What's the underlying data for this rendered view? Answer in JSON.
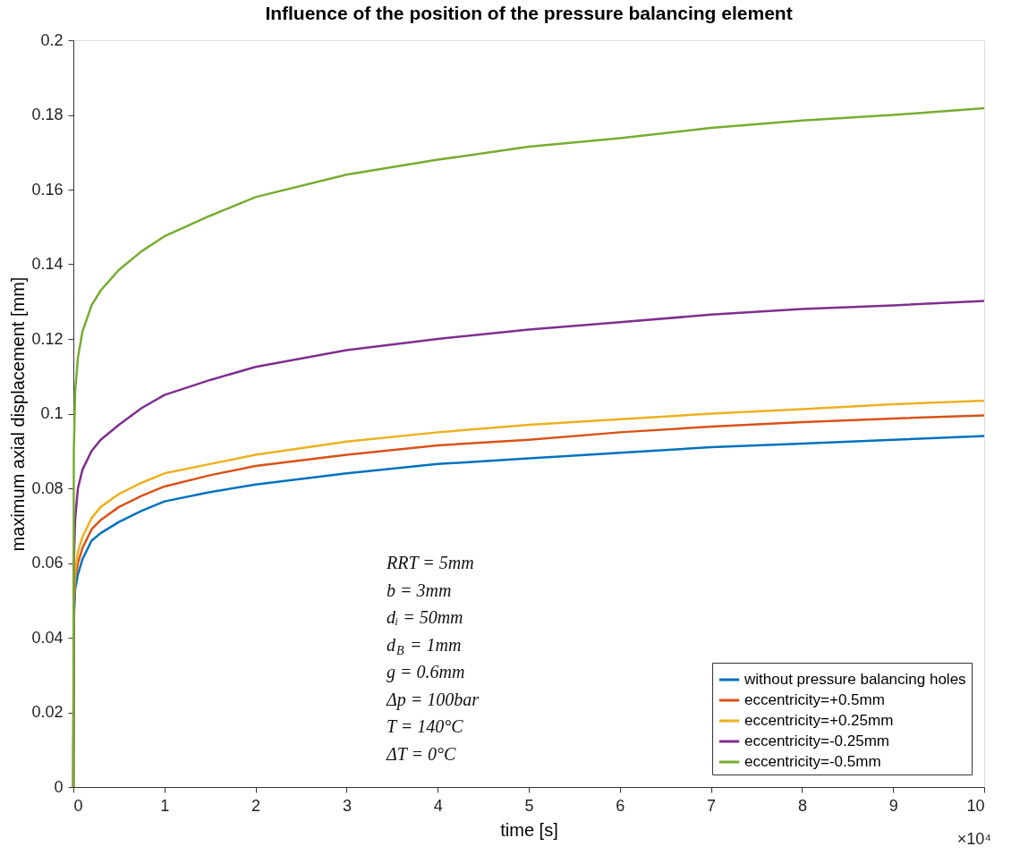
{
  "chart_data": {
    "type": "line",
    "title": "Influence of the position of the pressure balancing element",
    "xlabel": "time [s]",
    "ylabel": "maximum axial displacement [mm]",
    "x": [
      0,
      0.005,
      0.02,
      0.05,
      0.1,
      0.2,
      0.3,
      0.5,
      0.75,
      1,
      1.5,
      2,
      3,
      4,
      5,
      6,
      7,
      8,
      9,
      10
    ],
    "series": [
      {
        "name": "without pressure balancing holes",
        "color": "#0072bd",
        "values": [
          0,
          0.045,
          0.053,
          0.057,
          0.061,
          0.066,
          0.068,
          0.071,
          0.074,
          0.0765,
          0.079,
          0.081,
          0.084,
          0.0865,
          0.088,
          0.0895,
          0.091,
          0.092,
          0.093,
          0.094
        ]
      },
      {
        "name": "eccentricity=+0.5mm",
        "color": "#d95319",
        "values": [
          0,
          0.047,
          0.056,
          0.06,
          0.064,
          0.069,
          0.0715,
          0.075,
          0.078,
          0.0805,
          0.0835,
          0.086,
          0.089,
          0.0915,
          0.093,
          0.095,
          0.0965,
          0.0977,
          0.0987,
          0.0995
        ]
      },
      {
        "name": "eccentricity=+0.25mm",
        "color": "#edb120",
        "values": [
          0,
          0.049,
          0.058,
          0.063,
          0.067,
          0.072,
          0.075,
          0.0785,
          0.0815,
          0.084,
          0.0865,
          0.089,
          0.0925,
          0.095,
          0.097,
          0.0985,
          0.1,
          0.1012,
          0.1025,
          0.1035
        ]
      },
      {
        "name": "eccentricity=-0.25mm",
        "color": "#7e2f8e",
        "values": [
          0,
          0.06,
          0.072,
          0.08,
          0.085,
          0.09,
          0.093,
          0.097,
          0.1015,
          0.105,
          0.109,
          0.1125,
          0.117,
          0.12,
          0.1225,
          0.1245,
          0.1265,
          0.128,
          0.129,
          0.1302
        ]
      },
      {
        "name": "eccentricity=-0.5mm",
        "color": "#77ac30",
        "values": [
          0,
          0.09,
          0.106,
          0.115,
          0.122,
          0.129,
          0.133,
          0.1385,
          0.1435,
          0.1475,
          0.153,
          0.158,
          0.164,
          0.168,
          0.1715,
          0.1738,
          0.1765,
          0.1785,
          0.18,
          0.1818
        ]
      }
    ],
    "xlim": [
      0,
      10
    ],
    "xticks": [
      0,
      1,
      2,
      3,
      4,
      5,
      6,
      7,
      8,
      9,
      10
    ],
    "ylim": [
      0,
      0.2
    ],
    "yticks": [
      0,
      0.02,
      0.04,
      0.06,
      0.08,
      0.1,
      0.12,
      0.14,
      0.16,
      0.18,
      0.2
    ],
    "grid": false,
    "legend": "bottom right",
    "marker": "none",
    "line_style": "solid",
    "annotations": [
      "RRT = 5mm",
      "b = 3mm",
      "dᵢ = 50mm",
      "d$_{B}$ = 1mm",
      "g = 0.6mm",
      "Δp = 100bar",
      "T = 140°C",
      "ΔT = 0°C",
      "×10⁴"
    ]
  }
}
